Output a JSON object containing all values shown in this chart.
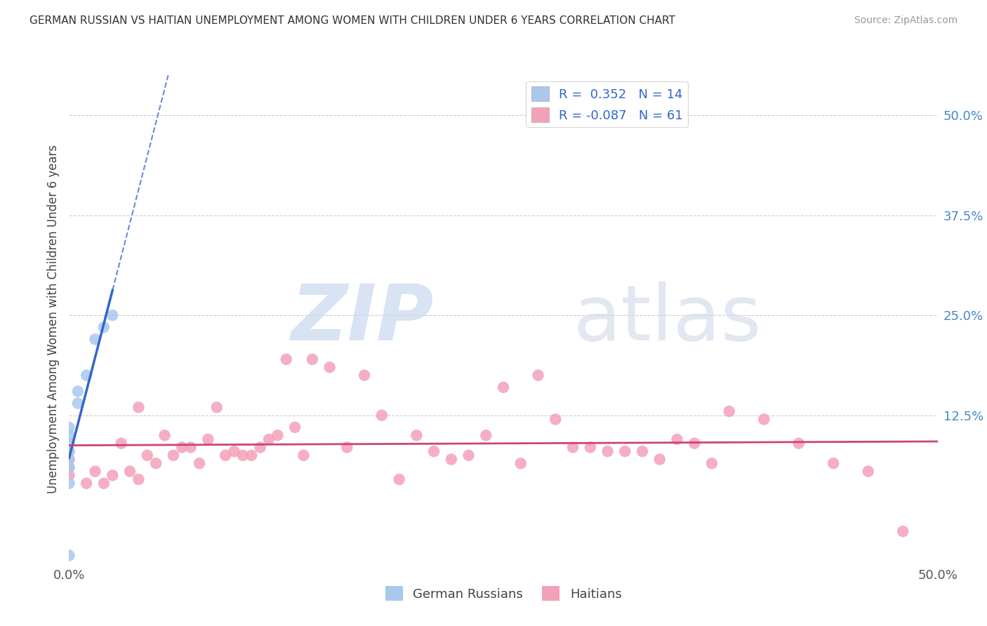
{
  "title": "GERMAN RUSSIAN VS HAITIAN UNEMPLOYMENT AMONG WOMEN WITH CHILDREN UNDER 6 YEARS CORRELATION CHART",
  "source": "Source: ZipAtlas.com",
  "ylabel": "Unemployment Among Women with Children Under 6 years",
  "xlim": [
    0.0,
    0.5
  ],
  "ylim": [
    -0.06,
    0.55
  ],
  "xticks": [
    0.0,
    0.125,
    0.25,
    0.375,
    0.5
  ],
  "xticklabels": [
    "0.0%",
    "",
    "",
    "",
    "50.0%"
  ],
  "ytick_positions": [
    0.125,
    0.25,
    0.375,
    0.5
  ],
  "ytick_labels": [
    "12.5%",
    "25.0%",
    "37.5%",
    "50.0%"
  ],
  "bg_color": "#ffffff",
  "grid_color": "#cccccc",
  "german_russian_color": "#a8c8ee",
  "haitian_color": "#f4a0b8",
  "trend_german_color": "#3366cc",
  "trend_haitian_color": "#cc4477",
  "german_russian_x": [
    0.0,
    0.0,
    0.0,
    0.0,
    0.0,
    0.0,
    0.0,
    0.005,
    0.005,
    0.01,
    0.015,
    0.02,
    0.025,
    0.0
  ],
  "german_russian_y": [
    0.04,
    0.06,
    0.07,
    0.08,
    0.09,
    0.1,
    0.11,
    0.14,
    0.155,
    0.175,
    0.22,
    0.235,
    0.25,
    -0.05
  ],
  "haitian_x": [
    0.0,
    0.0,
    0.0,
    0.0,
    0.01,
    0.015,
    0.02,
    0.025,
    0.03,
    0.035,
    0.04,
    0.04,
    0.045,
    0.05,
    0.055,
    0.06,
    0.065,
    0.07,
    0.075,
    0.08,
    0.085,
    0.09,
    0.095,
    0.1,
    0.105,
    0.11,
    0.115,
    0.12,
    0.125,
    0.13,
    0.135,
    0.14,
    0.15,
    0.16,
    0.17,
    0.18,
    0.19,
    0.2,
    0.21,
    0.22,
    0.23,
    0.24,
    0.25,
    0.26,
    0.27,
    0.28,
    0.29,
    0.3,
    0.31,
    0.32,
    0.33,
    0.34,
    0.35,
    0.36,
    0.37,
    0.38,
    0.4,
    0.42,
    0.44,
    0.46,
    0.48
  ],
  "haitian_y": [
    0.05,
    0.06,
    0.07,
    0.08,
    0.04,
    0.055,
    0.04,
    0.05,
    0.09,
    0.055,
    0.045,
    0.135,
    0.075,
    0.065,
    0.1,
    0.075,
    0.085,
    0.085,
    0.065,
    0.095,
    0.135,
    0.075,
    0.08,
    0.075,
    0.075,
    0.085,
    0.095,
    0.1,
    0.195,
    0.11,
    0.075,
    0.195,
    0.185,
    0.085,
    0.175,
    0.125,
    0.045,
    0.1,
    0.08,
    0.07,
    0.075,
    0.1,
    0.16,
    0.065,
    0.175,
    0.12,
    0.085,
    0.085,
    0.08,
    0.08,
    0.08,
    0.07,
    0.095,
    0.09,
    0.065,
    0.13,
    0.12,
    0.09,
    0.065,
    0.055,
    -0.02
  ]
}
